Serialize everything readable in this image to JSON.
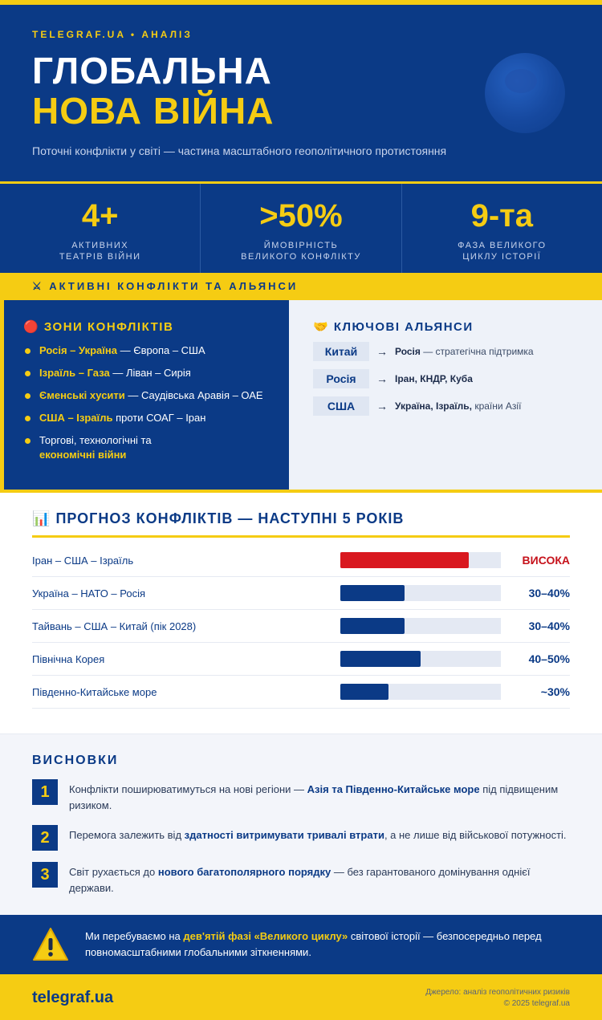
{
  "header": {
    "kicker": "TELEGRAF.UA • АНАЛІЗ",
    "title_line1": "ГЛОБАЛЬНА",
    "title_line2": "НОВА ВІЙНА",
    "subtitle": "Поточні конфлікти у світі — частина масштабного геополітичного протистояння"
  },
  "stats": [
    {
      "value": "4+",
      "label1": "АКТИВНИХ",
      "label2": "ТЕАТРІВ ВІЙНИ"
    },
    {
      "value": ">50%",
      "label1": "ЙМОВІРНІСТЬ",
      "label2": "ВЕЛИКОГО КОНФЛІКТУ"
    },
    {
      "value": "9-та",
      "label1": "ФАЗА ВЕЛИКОГО",
      "label2": "ЦИКЛУ ІСТОРІЇ"
    }
  ],
  "band": {
    "icon": "⚔",
    "text": "АКТИВНІ КОНФЛІКТИ ТА АЛЬЯНСИ"
  },
  "zones": {
    "icon": "🔴",
    "title": "ЗОНИ КОНФЛІКТІВ",
    "items": [
      {
        "bold": "Росія – Україна",
        "rest": " — Європа – США"
      },
      {
        "bold": "Ізраїль – Газа",
        "rest": " — Ліван – Сирія"
      },
      {
        "bold": "Єменські хусити",
        "rest": " — Саудівська Аравія – ОАЕ"
      },
      {
        "bold": "США – Ізраїль",
        "rest": " проти СОАГ – Іран"
      },
      {
        "pre": "Торгові, технологічні та",
        "bold": "економічні війни"
      }
    ]
  },
  "alliances": {
    "icon": "🤝",
    "title": "КЛЮЧОВІ АЛЬЯНСИ",
    "arrow": "→",
    "rows": [
      {
        "tag": "Китай",
        "bold": "Росія",
        "rest": " — стратегічна підтримка"
      },
      {
        "tag": "Росія",
        "bold": "Іран, КНДР, Куба",
        "rest": ""
      },
      {
        "tag": "США",
        "bold": "Україна, Ізраїль,",
        "rest": " країни Азії"
      }
    ]
  },
  "forecast": {
    "icon": "📊",
    "title": "ПРОГНОЗ КОНФЛІКТІВ — НАСТУПНІ 5 РОКІВ",
    "rows": [
      {
        "name": "Іран – США – Ізраїль",
        "value_label": "ВИСОКА",
        "level": 0.8,
        "high": true
      },
      {
        "name": "Україна – НАТО – Росія",
        "value_label": "30–40%",
        "level": 0.4,
        "high": false
      },
      {
        "name": "Тайвань – США – Китай (пік 2028)",
        "value_label": "30–40%",
        "level": 0.4,
        "high": false
      },
      {
        "name": "Північна Корея",
        "value_label": "40–50%",
        "level": 0.5,
        "high": false
      },
      {
        "name": "Південно-Китайське море",
        "value_label": "~30%",
        "level": 0.3,
        "high": false
      }
    ]
  },
  "conclusions": {
    "title": "ВИСНОВКИ",
    "items": [
      {
        "num": "1",
        "pre": "Конфлікти поширюватимуться на нові регіони — ",
        "bold": "Азія та Південно-Китайське море",
        "post": " під підвищеним ризиком."
      },
      {
        "num": "2",
        "pre": "Перемога залежить від ",
        "bold": "здатності витримувати тривалі втрати",
        "post": ", а не лише від військової потужності."
      },
      {
        "num": "3",
        "pre": "Світ рухається до ",
        "bold": "нового багатополярного порядку",
        "post": " — без гарантованого домінування однієї держави."
      }
    ]
  },
  "warning": {
    "pre": "Ми перебуваємо на ",
    "bold": "дев'ятій фазі «Великого циклу»",
    "post": " світової історії — безпосередньо перед повномасштабними глобальними зіткненнями."
  },
  "footer": {
    "logo": "telegraf.ua",
    "source": "Джерело: аналіз геополітичних ризиків",
    "copyright": "© 2025 telegraf.ua"
  },
  "colors": {
    "navy": "#0b3a86",
    "yellow": "#f5cc13",
    "red": "#d9181f"
  }
}
